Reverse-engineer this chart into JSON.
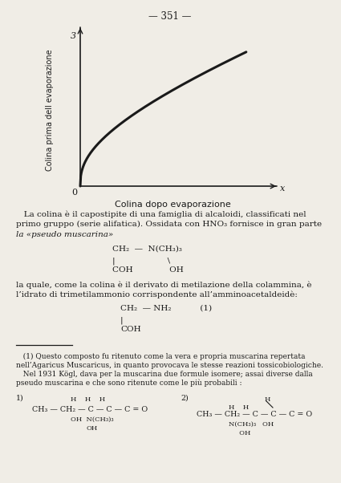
{
  "page_number": "351",
  "background_color": "#f0ede6",
  "text_color": "#1a1a1a",
  "graph": {
    "ylabel_rotated": "Colina prima dell evaporazione",
    "xlabel": "Colina dopo evaporazione",
    "curve_color": "#1a1a1a"
  },
  "paragraph1_indent": "   La colina è il capostipite di una famiglia di alcaloidi, classificati nel\nprimo gruppo (serie alifatica). Ossidata con HNO₃ fornisce in gran parte\nla pseudo muscarina",
  "paragraph2": "la quale, come la colina è il derivato di metilazione della colammina, è\nl’idrato di trimetilammonio corrispondente all’amminoacetaldeidè:",
  "footnote_text": "   (1) Questo composto fu ritenuto come la vera e propria muscarina repertata\nnell’Agaricus Muscaricus, in quanto provocava le stesse reazioni tossicobiologiche.\n   Nel 1931 Kögl, dava per la muscarina due formule isomere; assai diverse dalla\npseudo muscarina e che sono ritenute come le più probabili :"
}
